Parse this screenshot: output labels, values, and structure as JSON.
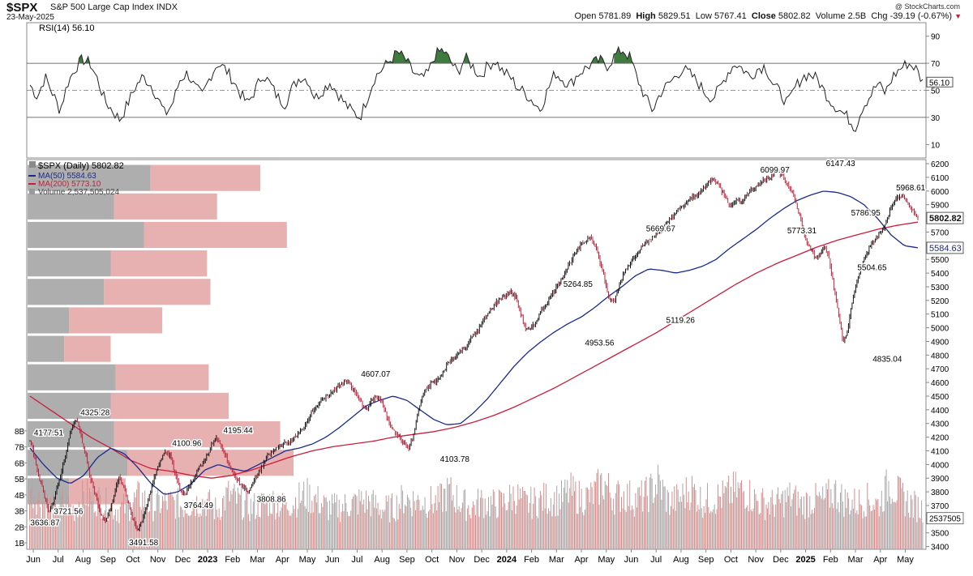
{
  "header": {
    "ticker": "$SPX",
    "name": "S&P 500 Large Cap Index",
    "exchange": "INDX",
    "date": "23-May-2025",
    "watermark": "@ StockCharts.com",
    "open_label": "Open",
    "open": "5781.89",
    "high_label": "High",
    "high": "5829.51",
    "low_label": "Low",
    "low": "5767.41",
    "close_label": "Close",
    "close": "5802.82",
    "volume_label": "Volume",
    "volume": "2.5B",
    "chg_label": "Chg",
    "chg": "-39.19 (-0.67%)"
  },
  "colors": {
    "up": "#111111",
    "down": "#c0203a",
    "ma50": "#1c2a8c",
    "ma200": "#c81e3c",
    "volume_up": "#a9a9a9",
    "volume_down": "#e08a8a",
    "vbp_up": "#a0a0a0",
    "vbp_down": "#e3a3a3",
    "rsi_line": "#222222",
    "rsi_fill": "#3f7a3f"
  },
  "chart_data": [
    {
      "type": "line",
      "title": "RSI(14) 56.10",
      "ylim": [
        0,
        100
      ],
      "yticks": [
        10,
        30,
        50,
        70,
        90
      ],
      "ytick_labels": [
        "10",
        "30",
        "50",
        "70",
        "90"
      ],
      "overbought": 70,
      "oversold": 30,
      "midline": 50,
      "last_value_label": "56.10",
      "series": [
        {
          "values": [
            54,
            45,
            60,
            48,
            35,
            55,
            66,
            73,
            70,
            58,
            42,
            35,
            28,
            40,
            52,
            60,
            55,
            45,
            32,
            40,
            58,
            63,
            52,
            46,
            60,
            70,
            66,
            58,
            48,
            40,
            50,
            62,
            55,
            45,
            40,
            52,
            60,
            58,
            44,
            50,
            56,
            48,
            40,
            34,
            30,
            45,
            60,
            66,
            72,
            78,
            73,
            64,
            58,
            62,
            76,
            80,
            72,
            63,
            74,
            68,
            60,
            68,
            72,
            64,
            60,
            52,
            48,
            42,
            36,
            50,
            63,
            58,
            54,
            62,
            66,
            70,
            72,
            68,
            76,
            80,
            74,
            58,
            45,
            35,
            48,
            54,
            60,
            66,
            62,
            56,
            48,
            44,
            52,
            63,
            70,
            66,
            60,
            66,
            68,
            55,
            48,
            40,
            52,
            60,
            62,
            58,
            48,
            40,
            35,
            30,
            22,
            38,
            46,
            55,
            48,
            60,
            66,
            70,
            67,
            56
          ]
        }
      ]
    },
    {
      "type": "line",
      "title": "$SPX (Daily) 5802.82",
      "legend": [
        "MA(50) 5584.63",
        "MA(200) 5773.10",
        "Volume 2,537,505,024"
      ],
      "x_ticks": [
        "Jun",
        "Jul",
        "Aug",
        "Sep",
        "Oct",
        "Nov",
        "Dec",
        "2023",
        "Feb",
        "Mar",
        "Apr",
        "May",
        "Jun",
        "Jul",
        "Aug",
        "Sep",
        "Oct",
        "Nov",
        "Dec",
        "2024",
        "Feb",
        "Mar",
        "Apr",
        "May",
        "Jun",
        "Jul",
        "Aug",
        "Sep",
        "Oct",
        "Nov",
        "Dec",
        "2025",
        "Feb",
        "Mar",
        "Apr",
        "May"
      ],
      "y_ticks": [
        3400,
        3500,
        3600,
        3700,
        3800,
        3900,
        4000,
        4100,
        4200,
        4300,
        4400,
        4500,
        4600,
        4700,
        4800,
        4900,
        5000,
        5100,
        5200,
        5300,
        5400,
        5500,
        5600,
        5700,
        5800,
        5900,
        6000,
        6100,
        6200
      ],
      "y_tick_labels": [
        "3400",
        "3500",
        "3600",
        "3700",
        "3800",
        "3900",
        "4000",
        "4100",
        "4200",
        "4300",
        "4400",
        "4500",
        "4600",
        "4700",
        "4800",
        "4900",
        "5000",
        "5100",
        "5200",
        "5300",
        "5400",
        "5500",
        "5600",
        "5700",
        "5800",
        "5900",
        "6000",
        "6100",
        "6200"
      ],
      "ylim": [
        3380,
        6230
      ],
      "volume_ticks": [
        "1B",
        "2B",
        "3B",
        "4B",
        "5B",
        "6B",
        "7B",
        "8B"
      ],
      "volume_last_label": "2537505",
      "price_last_label": "5802.82",
      "ma50_last_label": "5584.63",
      "series": [
        {
          "name": "$SPX",
          "values": [
            4177,
            4050,
            3900,
            3780,
            3666,
            3720,
            3850,
            3990,
            4140,
            4280,
            4325,
            4200,
            4050,
            3900,
            3780,
            3640,
            3580,
            3660,
            3780,
            3900,
            3850,
            3720,
            3600,
            3520,
            3580,
            3700,
            3830,
            3950,
            4030,
            4100,
            4060,
            3940,
            3830,
            3770,
            3840,
            3900,
            3980,
            4000,
            4080,
            4150,
            4195,
            4120,
            4050,
            3970,
            3900,
            3860,
            3820,
            3809,
            3880,
            3950,
            4010,
            4070,
            4100,
            4130,
            4150,
            4160,
            4180,
            4205,
            4250,
            4300,
            4370,
            4420,
            4450,
            4480,
            4510,
            4540,
            4580,
            4600,
            4607,
            4560,
            4500,
            4450,
            4400,
            4460,
            4500,
            4480,
            4380,
            4300,
            4250,
            4200,
            4160,
            4117,
            4200,
            4380,
            4500,
            4560,
            4600,
            4610,
            4650,
            4720,
            4760,
            4790,
            4820,
            4850,
            4900,
            4950,
            4990,
            5050,
            5100,
            5150,
            5190,
            5220,
            5240,
            5265,
            5220,
            5100,
            5000,
            4980,
            5030,
            5100,
            5150,
            5210,
            5260,
            5320,
            5380,
            5440,
            5500,
            5560,
            5610,
            5640,
            5670,
            5600,
            5480,
            5350,
            5200,
            5190,
            5300,
            5400,
            5450,
            5500,
            5550,
            5600,
            5630,
            5650,
            5690,
            5720,
            5750,
            5800,
            5840,
            5870,
            5900,
            5930,
            5960,
            5985,
            6010,
            6050,
            6090,
            6070,
            6000,
            5950,
            5880,
            5940,
            5920,
            5960,
            6000,
            6020,
            6050,
            6080,
            6100,
            6120,
            6147,
            6110,
            6050,
            6000,
            5900,
            5787,
            5640,
            5580,
            5510,
            5530,
            5600,
            5500,
            5300,
            5100,
            4900,
            4982,
            5200,
            5350,
            5450,
            5550,
            5600,
            5660,
            5690,
            5750,
            5850,
            5920,
            5969,
            5940,
            5900,
            5842,
            5803
          ]
        },
        {
          "name": "MA(50)",
          "values": [
            4120,
            4000,
            3900,
            3860,
            3920,
            4050,
            4120,
            4080,
            3980,
            3860,
            3780,
            3800,
            3860,
            3960,
            4000,
            3970,
            3950,
            4000,
            4050,
            4100,
            4120,
            4150,
            4200,
            4270,
            4350,
            4430,
            4470,
            4500,
            4470,
            4400,
            4330,
            4290,
            4300,
            4380,
            4480,
            4600,
            4720,
            4820,
            4900,
            4970,
            5030,
            5080,
            5150,
            5230,
            5300,
            5380,
            5430,
            5420,
            5400,
            5420,
            5450,
            5500,
            5580,
            5650,
            5720,
            5800,
            5870,
            5930,
            5970,
            6000,
            5990,
            5960,
            5900,
            5800,
            5680,
            5600,
            5585
          ]
        },
        {
          "name": "MA(200)",
          "values": [
            4500,
            4400,
            4300,
            4200,
            4120,
            4030,
            3970,
            3950,
            3920,
            3900,
            3920,
            3960,
            4010,
            4060,
            4100,
            4130,
            4150,
            4170,
            4200,
            4220,
            4240,
            4270,
            4310,
            4360,
            4420,
            4490,
            4560,
            4640,
            4720,
            4800,
            4880,
            4960,
            5050,
            5140,
            5230,
            5320,
            5400,
            5470,
            5530,
            5590,
            5640,
            5680,
            5720,
            5750,
            5773
          ]
        },
        {
          "name": "Volume",
          "values": [
            4.6,
            3.6,
            3.3,
            3.6,
            3.1,
            4.0,
            3.8,
            3.4,
            3.1,
            3.3,
            3.9,
            3.3,
            3.5,
            3.5,
            3.3,
            3.5,
            3.6,
            3.0,
            4.0,
            3.6,
            3.2,
            3.4,
            3.6,
            3.3,
            3.6,
            4.0,
            3.7,
            3.2,
            3.2,
            3.4,
            3.6,
            3.5,
            3.1,
            3.2,
            3.8,
            3.6,
            3.6,
            3.5,
            4.2,
            3.6,
            3.2,
            3.6,
            3.4,
            3.5,
            4.0,
            3.4,
            3.6,
            3.8,
            3.7,
            4.2,
            3.8,
            3.9,
            4.8,
            3.9,
            4.0,
            3.7,
            4.0,
            4.8,
            3.5,
            3.8,
            4.4,
            3.6,
            3.8,
            3.9,
            4.3,
            4.2,
            3.6,
            3.4,
            3.5,
            3.9,
            3.4,
            3.7,
            3.6,
            4.2,
            3.6,
            3.5,
            3.7,
            3.4,
            4.8,
            3.9,
            3.4,
            3.1
          ]
        }
      ]
    }
  ],
  "price_labels": [
    "4177.51",
    "3721.56",
    "3636.87",
    "4325.28",
    "3491.58",
    "4100.96",
    "3764.49",
    "4195.44",
    "3808.86",
    "4607.07",
    "4103.78",
    "5264.85",
    "4953.56",
    "5669.67",
    "5119.26",
    "6099.97",
    "5773.31",
    "6147.43",
    "5786.95",
    "5504.65",
    "4835.04",
    "5968.61"
  ],
  "volume_by_price": [
    {
      "up": 0.74,
      "down": 0.66
    },
    {
      "up": 0.52,
      "down": 0.62
    },
    {
      "up": 0.7,
      "down": 0.86
    },
    {
      "up": 0.5,
      "down": 0.58
    },
    {
      "up": 0.46,
      "down": 0.64
    },
    {
      "up": 0.25,
      "down": 0.56
    },
    {
      "up": 0.22,
      "down": 0.28
    },
    {
      "up": 0.53,
      "down": 0.56
    },
    {
      "up": 0.5,
      "down": 0.71
    },
    {
      "up": 0.52,
      "down": 1.0
    },
    {
      "up": 0.6,
      "down": 1.0
    },
    {
      "up": 0.25,
      "down": 0.34
    }
  ]
}
